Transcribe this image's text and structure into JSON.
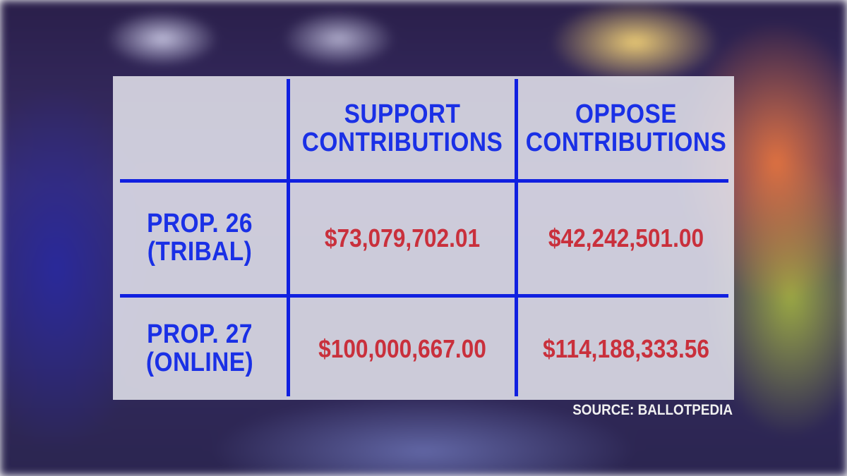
{
  "source": "SOURCE: BALLOTPEDIA",
  "table": {
    "columns": [
      [
        "SUPPORT",
        "CONTRIBUTIONS"
      ],
      [
        "OPPOSE",
        "CONTRIBUTIONS"
      ]
    ],
    "rows": [
      {
        "label": [
          "PROP. 26",
          "(TRIBAL)"
        ],
        "cells": [
          "$73,079,702.01",
          "$42,242,501.00"
        ]
      },
      {
        "label": [
          "PROP. 27",
          "(ONLINE)"
        ],
        "cells": [
          "$100,000,667.00",
          "$114,188,333.56"
        ]
      }
    ]
  }
}
